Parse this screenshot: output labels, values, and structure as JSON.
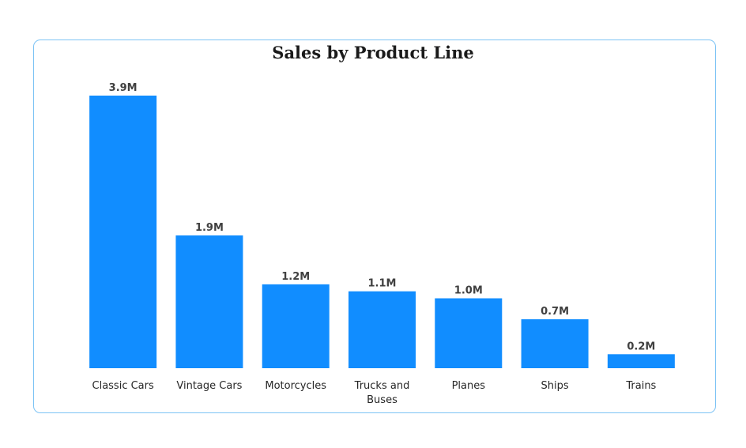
{
  "chart_data": {
    "type": "bar",
    "title": "Sales by Product Line",
    "xlabel": "",
    "ylabel": "",
    "categories": [
      "Classic Cars",
      "Vintage Cars",
      "Motorcycles",
      "Trucks and Buses",
      "Planes",
      "Ships",
      "Trains"
    ],
    "values": [
      3.9,
      1.9,
      1.2,
      1.1,
      1.0,
      0.7,
      0.2
    ],
    "data_labels": [
      "3.9M",
      "1.9M",
      "1.2M",
      "1.1M",
      "1.0M",
      "0.7M",
      "0.2M"
    ],
    "unit": "M",
    "ylim": [
      0,
      3.9
    ],
    "grid": false,
    "legend": "none",
    "colors": {
      "bar": "#118dff",
      "border": "#7cc3f5"
    }
  }
}
